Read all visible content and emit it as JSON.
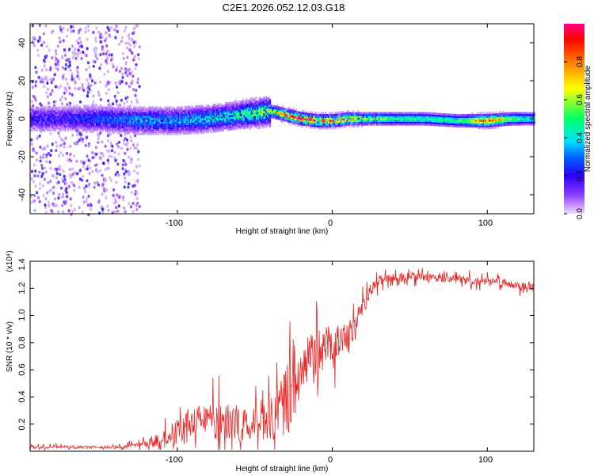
{
  "title": "C2E1.2026.052.12.03.G18",
  "colors": {
    "snr_line": "#ee2222",
    "axis": "#000000",
    "colormap": [
      "#f2d9ff",
      "#8c3cff",
      "#2a00ff",
      "#0066ff",
      "#00e0ff",
      "#00ff66",
      "#ffff00",
      "#ff7a00",
      "#ff0000",
      "#ff0088"
    ]
  },
  "chart_data": [
    {
      "type": "heatmap",
      "xlabel": "Height of straight line (km)",
      "ylabel": "Frequency (Hz)",
      "xlim": [
        -195,
        130
      ],
      "ylim": [
        -50,
        50
      ],
      "xticks": [
        -100,
        0,
        100
      ],
      "xticklabels": [
        "-100",
        "0",
        "100"
      ],
      "yticks": [
        -40,
        -20,
        0,
        20,
        40
      ],
      "yticklabels": [
        "-40",
        "-20",
        "0",
        "20",
        "40"
      ],
      "colorbar": {
        "label": "Normalized spectral amplitude",
        "range": [
          0,
          1
        ],
        "ticks": [
          0.0,
          0.2,
          0.4,
          0.6,
          0.8
        ],
        "ticklabels": [
          "0.0",
          "0.2",
          "0.4",
          "0.6",
          "0.8"
        ]
      },
      "ridge": {
        "x": [
          -175,
          -150,
          -125,
          -100,
          -80,
          -60,
          -50,
          -40,
          -30,
          -20,
          -10,
          0,
          10,
          20,
          40,
          60,
          80,
          100,
          115,
          130
        ],
        "center_hz": [
          0,
          0,
          -1,
          -1,
          0,
          2,
          3,
          4,
          2,
          0,
          -1,
          -1,
          0,
          0,
          0,
          0,
          -1,
          -1,
          0,
          0
        ],
        "amplitude": [
          0.22,
          0.28,
          0.36,
          0.36,
          0.4,
          0.48,
          0.55,
          0.62,
          0.85,
          0.92,
          0.88,
          0.9,
          0.78,
          0.62,
          0.5,
          0.48,
          0.5,
          0.86,
          0.55,
          0.42
        ]
      }
    },
    {
      "type": "line",
      "xlabel": "Height of straight line (km)",
      "ylabel": "SNR (10 * v/v)",
      "scale_label": "(x10⁴)",
      "xlim": [
        -195,
        130
      ],
      "ylim": [
        0,
        1.4
      ],
      "xticks": [
        -100,
        0,
        100
      ],
      "xticklabels": [
        "-100",
        "0",
        "100"
      ],
      "yticks": [
        0.2,
        0.4,
        0.6,
        0.8,
        1.0,
        1.2,
        1.4
      ],
      "yticklabels": [
        "0.2",
        "0.4",
        "0.6",
        "0.8",
        "1.0",
        "1.2",
        "1.4"
      ],
      "series": [
        {
          "name": "SNR",
          "x": [
            -195,
            -180,
            -160,
            -140,
            -125,
            -115,
            -105,
            -95,
            -85,
            -75,
            -65,
            -55,
            -45,
            -35,
            -28,
            -24,
            -20,
            -15,
            -10,
            -5,
            0,
            5,
            10,
            15,
            20,
            25,
            30,
            35,
            40,
            50,
            60,
            70,
            80,
            90,
            100,
            110,
            120,
            130
          ],
          "y": [
            0.03,
            0.03,
            0.03,
            0.03,
            0.04,
            0.07,
            0.12,
            0.17,
            0.2,
            0.21,
            0.2,
            0.18,
            0.2,
            0.27,
            0.4,
            0.55,
            0.6,
            0.66,
            0.72,
            0.76,
            0.8,
            0.82,
            0.86,
            0.92,
            1.05,
            1.2,
            1.26,
            1.28,
            1.28,
            1.29,
            1.28,
            1.27,
            1.27,
            1.26,
            1.25,
            1.24,
            1.22,
            1.21
          ],
          "noise": [
            0.01,
            0.01,
            0.01,
            0.01,
            0.02,
            0.04,
            0.08,
            0.11,
            0.13,
            0.14,
            0.13,
            0.12,
            0.14,
            0.18,
            0.3,
            0.34,
            0.25,
            0.2,
            0.18,
            0.16,
            0.14,
            0.12,
            0.11,
            0.1,
            0.07,
            0.05,
            0.04,
            0.03,
            0.03,
            0.03,
            0.03,
            0.03,
            0.03,
            0.03,
            0.03,
            0.03,
            0.03,
            0.03
          ]
        }
      ]
    }
  ]
}
